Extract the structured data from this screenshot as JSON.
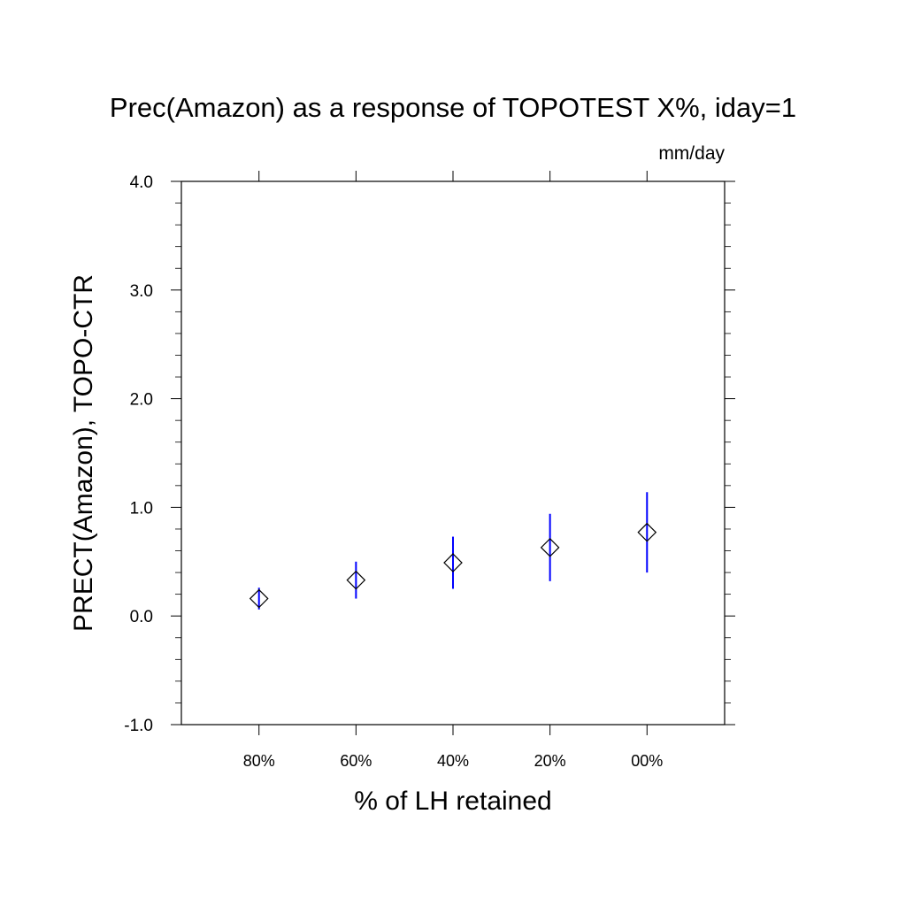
{
  "chart_data": {
    "type": "scatter",
    "title": "Prec(Amazon) as a response of TOPOTEST X%, iday=1",
    "units_label": "mm/day",
    "xlabel": "% of LH retained",
    "ylabel": "PRECT(Amazon), TOPO-CTR",
    "categories": [
      "80%",
      "60%",
      "40%",
      "20%",
      "00%"
    ],
    "x": [
      1,
      2,
      3,
      4,
      5
    ],
    "xlim": [
      0.2,
      5.8
    ],
    "ylim": [
      -1.0,
      4.0
    ],
    "y_ticks": [
      "-1.0",
      "0.0",
      "1.0",
      "2.0",
      "3.0",
      "4.0"
    ],
    "y_tick_values": [
      -1.0,
      0.0,
      1.0,
      2.0,
      3.0,
      4.0
    ],
    "y_minor_step": 0.2,
    "series": [
      {
        "marker": "diamond-open",
        "values": [
          0.16,
          0.33,
          0.49,
          0.63,
          0.77
        ],
        "error_low": [
          0.06,
          0.16,
          0.25,
          0.32,
          0.4
        ],
        "error_high": [
          0.26,
          0.5,
          0.73,
          0.94,
          1.14
        ],
        "error_color": "#0000ff",
        "marker_color": "#000000"
      }
    ],
    "grid": false,
    "legend": "none"
  }
}
